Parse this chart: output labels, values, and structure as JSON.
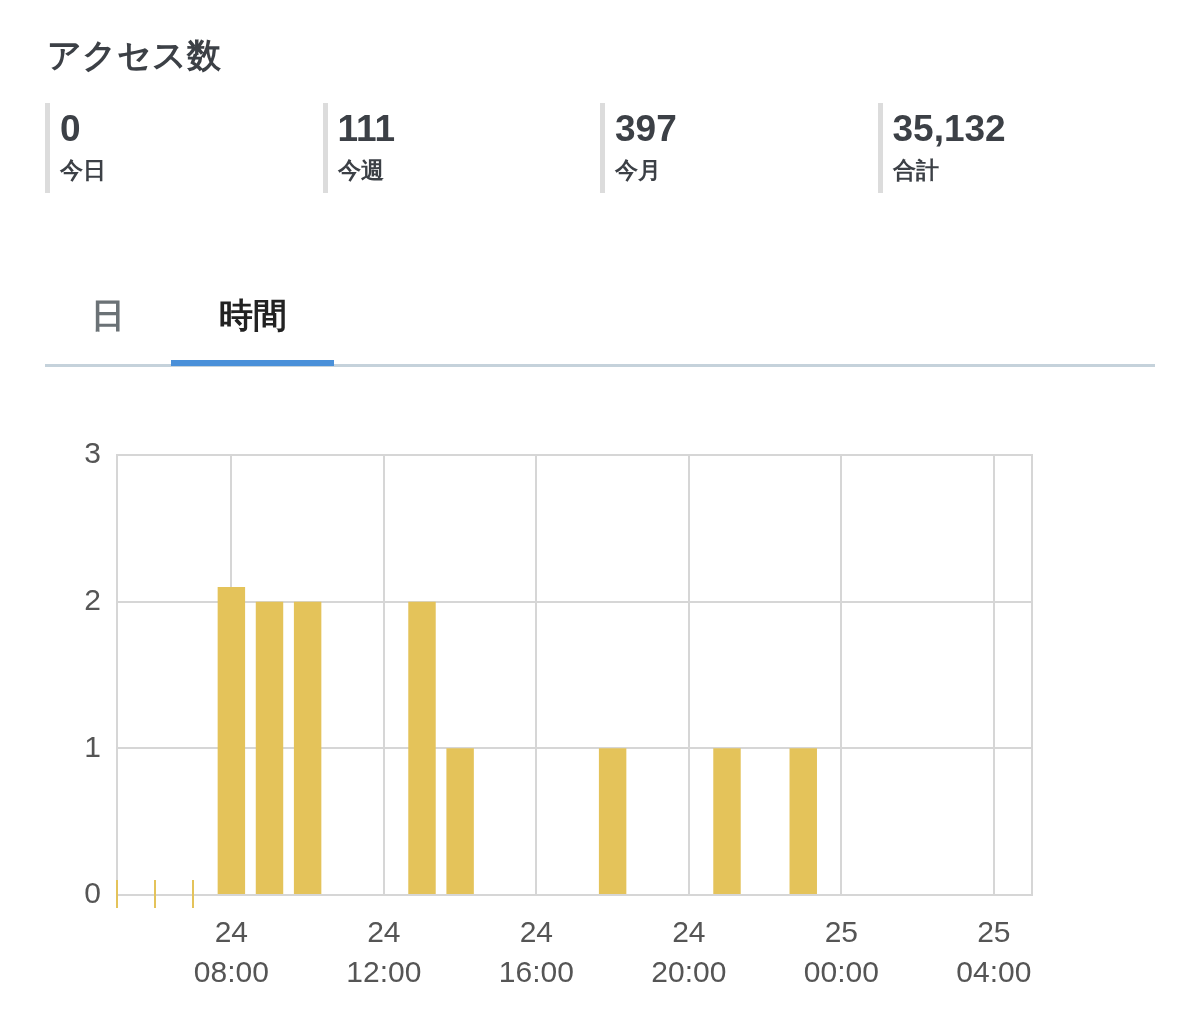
{
  "chart_data": [
    {
      "type": "other",
      "title": "アクセス数",
      "annotations": [
        "0",
        "今日",
        "111",
        "今週",
        "397",
        "今月",
        "35,132",
        "合計"
      ]
    },
    {
      "type": "bar",
      "annotations": [
        "日",
        "時間"
      ],
      "categories": [
        null,
        null,
        null,
        "24\n08:00",
        null,
        null,
        null,
        "24\n12:00",
        null,
        null,
        null,
        "24\n16:00",
        null,
        null,
        null,
        "24\n20:00",
        null,
        null,
        null,
        "25\n00:00",
        null,
        null,
        null,
        "25\n04:00",
        null
      ],
      "values": [
        0,
        0,
        0,
        2.1,
        2,
        2,
        null,
        null,
        2,
        1,
        null,
        null,
        null,
        1,
        null,
        null,
        1,
        null,
        1,
        null,
        null,
        null,
        null,
        null,
        null
      ],
      "color": "#e4c35a",
      "ylim": [
        0,
        3
      ],
      "yticks": [
        0,
        1,
        2,
        3
      ],
      "grid": true
    }
  ]
}
